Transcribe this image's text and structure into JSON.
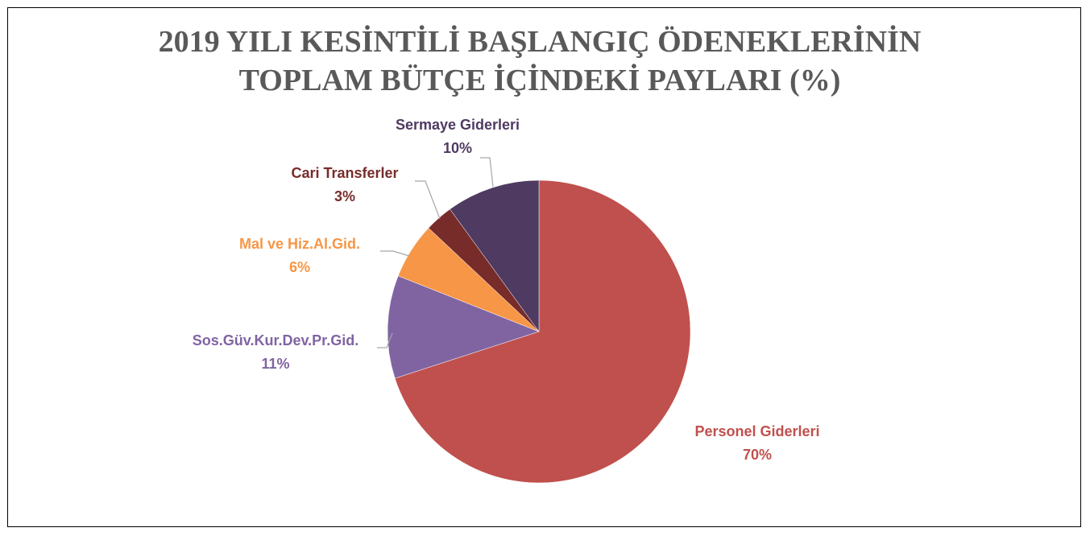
{
  "chart_data": {
    "type": "pie",
    "title": "2019 YILI KESİNTİLİ BAŞLANGIÇ ÖDENEKLERİNİN TOPLAM BÜTÇE İÇİNDEKİ PAYLARI (%)",
    "categories": [
      "Personel Giderleri",
      "Sos.Güv.Kur.Dev.Pr.Gid.",
      "Mal ve Hiz.Al.Gid.",
      "Cari Transferler",
      "Sermaye Giderleri"
    ],
    "values": [
      70,
      11,
      6,
      3,
      10
    ],
    "value_labels": [
      "70%",
      "11%",
      "6%",
      "3%",
      "10%"
    ],
    "colors": [
      "#c0504d",
      "#8064a2",
      "#f79646",
      "#772c2a",
      "#4f3a62"
    ]
  }
}
